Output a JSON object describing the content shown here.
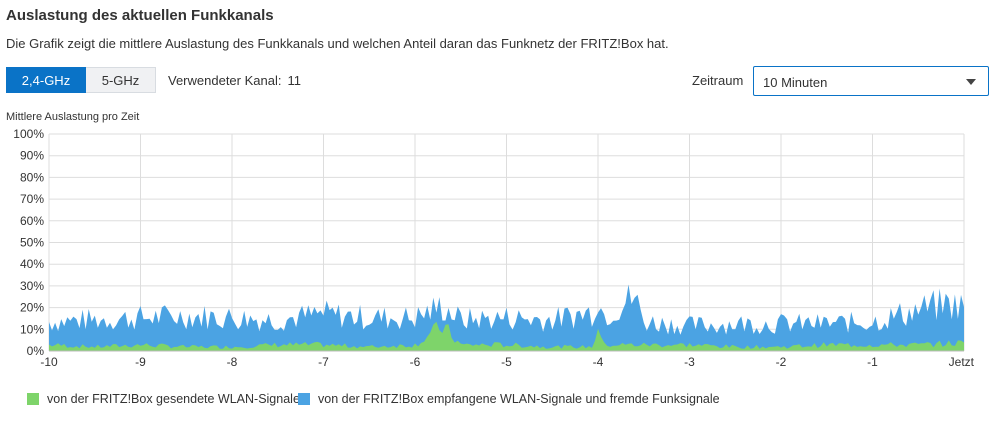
{
  "header": {
    "title": "Auslastung des aktuellen Funkkanals",
    "description": "Die Grafik zeigt die mittlere Auslastung des Funkkanals und welchen Anteil daran das Funknetz der FRITZ!Box hat."
  },
  "controls": {
    "band_24": "2,4-GHz",
    "band_5": "5-GHz",
    "channel_label": "Verwendeter Kanal:",
    "channel_value": "11",
    "zeitraum_label": "Zeitraum",
    "zeitraum_value": "10 Minuten"
  },
  "colors": {
    "accent": "#0a73c7",
    "received": "#4ba3e3",
    "sent": "#7ed46a",
    "grid": "#dddddd"
  },
  "chart_data": {
    "type": "area",
    "title": "Mittlere Auslastung pro Zeit",
    "ylabel": "Mittlere Auslastung pro Zeit",
    "xlabel": "",
    "xlim": [
      -10,
      0
    ],
    "ylim": [
      0,
      100
    ],
    "y_ticks": [
      "0%",
      "10%",
      "20%",
      "30%",
      "40%",
      "50%",
      "60%",
      "70%",
      "80%",
      "90%",
      "100%"
    ],
    "x_ticks": [
      "-10",
      "-9",
      "-8",
      "-7",
      "-6",
      "-5",
      "-4",
      "-3",
      "-2",
      "-1",
      "Jetzt"
    ],
    "x_tick_values": [
      -10,
      -9,
      -8,
      -7,
      -6,
      -5,
      -4,
      -3,
      -2,
      -1,
      0
    ],
    "series": [
      {
        "name": "von der FRITZ!Box gesendete WLAN-Signale",
        "color": "#7ed46a",
        "x": [
          -10,
          -9.5,
          -9,
          -8.5,
          -8,
          -7.5,
          -7,
          -6.5,
          -6,
          -5.7,
          -5.5,
          -5,
          -4.5,
          -4.05,
          -4,
          -3.95,
          -3.5,
          -3,
          -2.5,
          -2,
          -1.5,
          -1,
          -0.5,
          0
        ],
        "values": [
          3,
          2,
          3,
          2,
          2,
          3,
          3,
          2,
          3,
          12,
          3,
          3,
          2,
          2,
          14,
          3,
          3,
          3,
          2,
          2,
          3,
          3,
          3,
          4
        ]
      },
      {
        "name": "von der FRITZ!Box empfangene WLAN-Signale und fremde Funksignale",
        "color": "#4ba3e3",
        "x": [
          -10,
          -9.5,
          -9,
          -8.5,
          -8,
          -7.5,
          -7,
          -6.5,
          -6,
          -5.7,
          -5.5,
          -5,
          -4.5,
          -4.05,
          -4,
          -3.95,
          -3.6,
          -3.5,
          -3,
          -2.5,
          -2,
          -1.5,
          -1,
          -0.5,
          -0.2,
          0
        ],
        "values": [
          15,
          16,
          17,
          18,
          17,
          16,
          19,
          17,
          17,
          23,
          16,
          17,
          16,
          20,
          30,
          18,
          28,
          15,
          13,
          14,
          14,
          14,
          15,
          21,
          24,
          23
        ]
      }
    ],
    "legend": [
      "von der FRITZ!Box gesendete WLAN-Signale",
      "von der FRITZ!Box empfangene WLAN-Signale und fremde Funksignale"
    ],
    "legend_position": "bottom-left",
    "grid": true
  }
}
